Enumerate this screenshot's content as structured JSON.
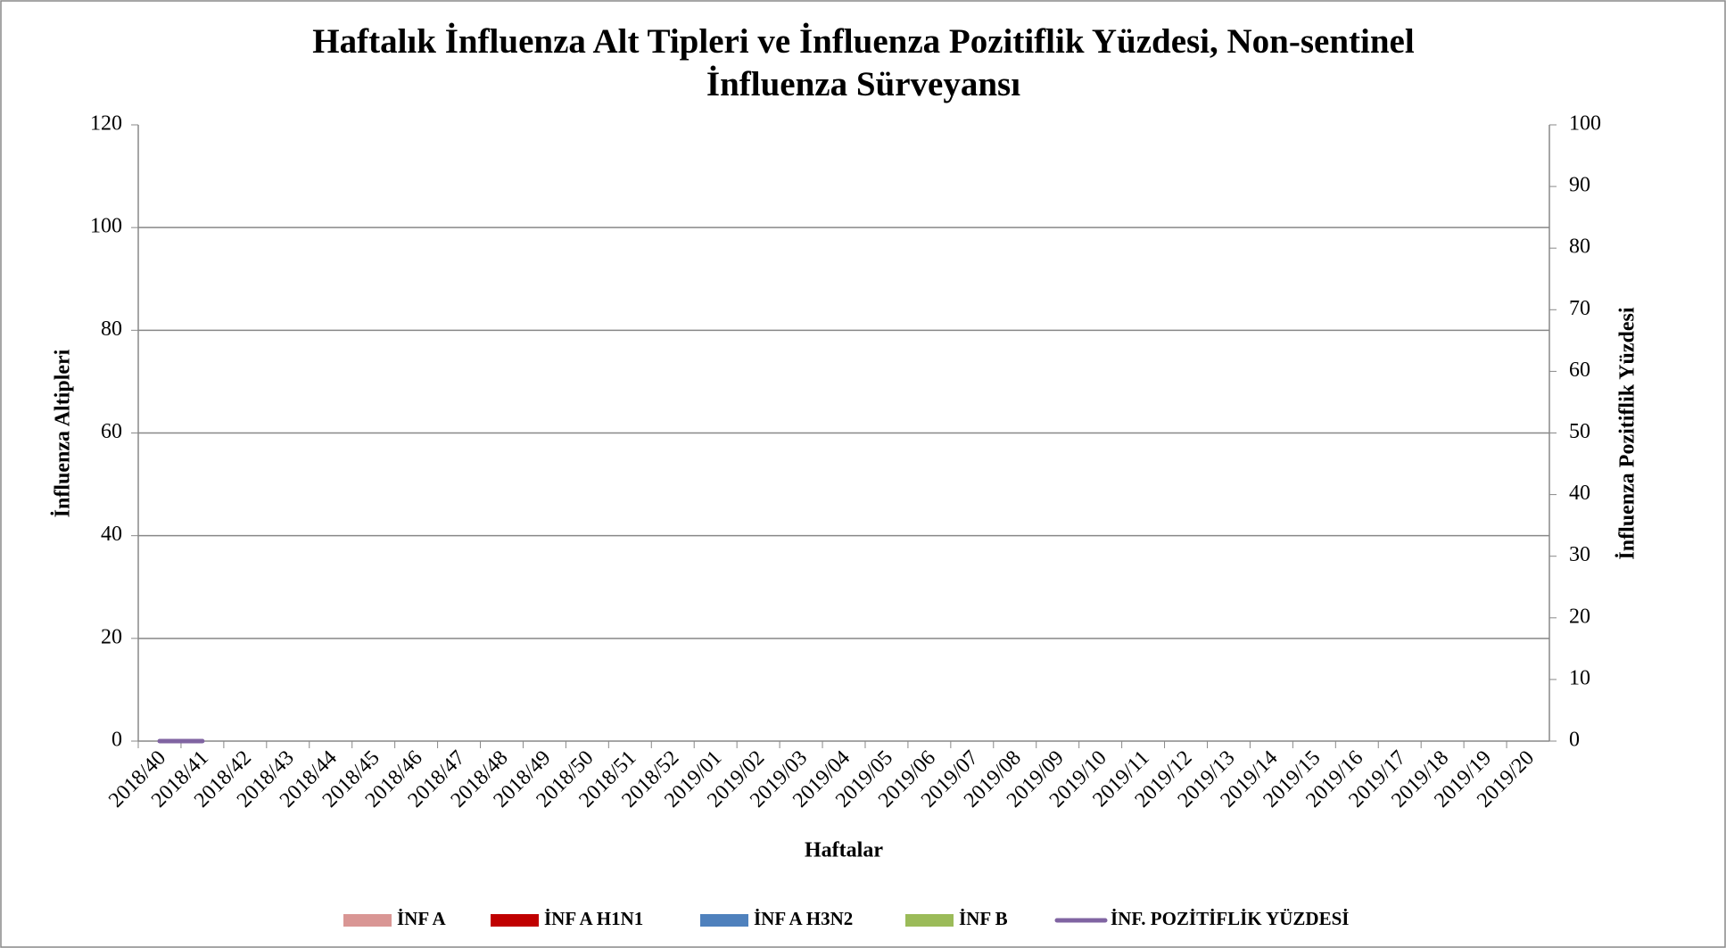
{
  "chart_data": {
    "type": "bar",
    "title": [
      "Haftalık İnfluenza Alt Tipleri ve İnfluenza Pozitiflik Yüzdesi, Non-sentinel",
      "İnfluenza Sürveyansı"
    ],
    "x_label": "Haftalar",
    "y_label": "İnfluenza Altipleri",
    "y2_label": "İnfluenza Pozitiflik Yüzdesi",
    "categories": [
      "2018/40",
      "2018/41",
      "2018/42",
      "2018/43",
      "2018/44",
      "2018/45",
      "2018/46",
      "2018/47",
      "2018/48",
      "2018/49",
      "2018/50",
      "2018/51",
      "2018/52",
      "2019/01",
      "2019/02",
      "2019/03",
      "2019/04",
      "2019/05",
      "2019/06",
      "2019/07",
      "2019/08",
      "2019/09",
      "2019/10",
      "2019/11",
      "2019/12",
      "2019/13",
      "2019/14",
      "2019/15",
      "2019/16",
      "2019/17",
      "2019/18",
      "2019/19",
      "2019/20"
    ],
    "series": [
      {
        "name": "İNF A",
        "type": "bar",
        "color": "#d99694",
        "values": [
          0,
          0,
          null,
          null,
          null,
          null,
          null,
          null,
          null,
          null,
          null,
          null,
          null,
          null,
          null,
          null,
          null,
          null,
          null,
          null,
          null,
          null,
          null,
          null,
          null,
          null,
          null,
          null,
          null,
          null,
          null,
          null,
          null
        ]
      },
      {
        "name": "İNF A H1N1",
        "type": "bar",
        "color": "#c00000",
        "values": [
          0,
          0,
          null,
          null,
          null,
          null,
          null,
          null,
          null,
          null,
          null,
          null,
          null,
          null,
          null,
          null,
          null,
          null,
          null,
          null,
          null,
          null,
          null,
          null,
          null,
          null,
          null,
          null,
          null,
          null,
          null,
          null,
          null
        ]
      },
      {
        "name": "İNF A H3N2",
        "type": "bar",
        "color": "#4f81bd",
        "values": [
          0,
          0,
          null,
          null,
          null,
          null,
          null,
          null,
          null,
          null,
          null,
          null,
          null,
          null,
          null,
          null,
          null,
          null,
          null,
          null,
          null,
          null,
          null,
          null,
          null,
          null,
          null,
          null,
          null,
          null,
          null,
          null,
          null
        ]
      },
      {
        "name": "İNF B",
        "type": "bar",
        "color": "#9bbb59",
        "values": [
          0,
          0,
          null,
          null,
          null,
          null,
          null,
          null,
          null,
          null,
          null,
          null,
          null,
          null,
          null,
          null,
          null,
          null,
          null,
          null,
          null,
          null,
          null,
          null,
          null,
          null,
          null,
          null,
          null,
          null,
          null,
          null,
          null
        ]
      },
      {
        "name": "İNF. POZİTİFLİK YÜZDESİ",
        "type": "line",
        "axis": "y2",
        "color": "#8064a2",
        "values": [
          0,
          0,
          null,
          null,
          null,
          null,
          null,
          null,
          null,
          null,
          null,
          null,
          null,
          null,
          null,
          null,
          null,
          null,
          null,
          null,
          null,
          null,
          null,
          null,
          null,
          null,
          null,
          null,
          null,
          null,
          null,
          null,
          null
        ]
      }
    ],
    "ylim": [
      0,
      120
    ],
    "yticks": [
      0,
      20,
      40,
      60,
      80,
      100,
      120
    ],
    "y2lim": [
      0,
      100
    ],
    "y2ticks": [
      0,
      10,
      20,
      30,
      40,
      50,
      60,
      70,
      80,
      90,
      100
    ],
    "grid": true
  }
}
